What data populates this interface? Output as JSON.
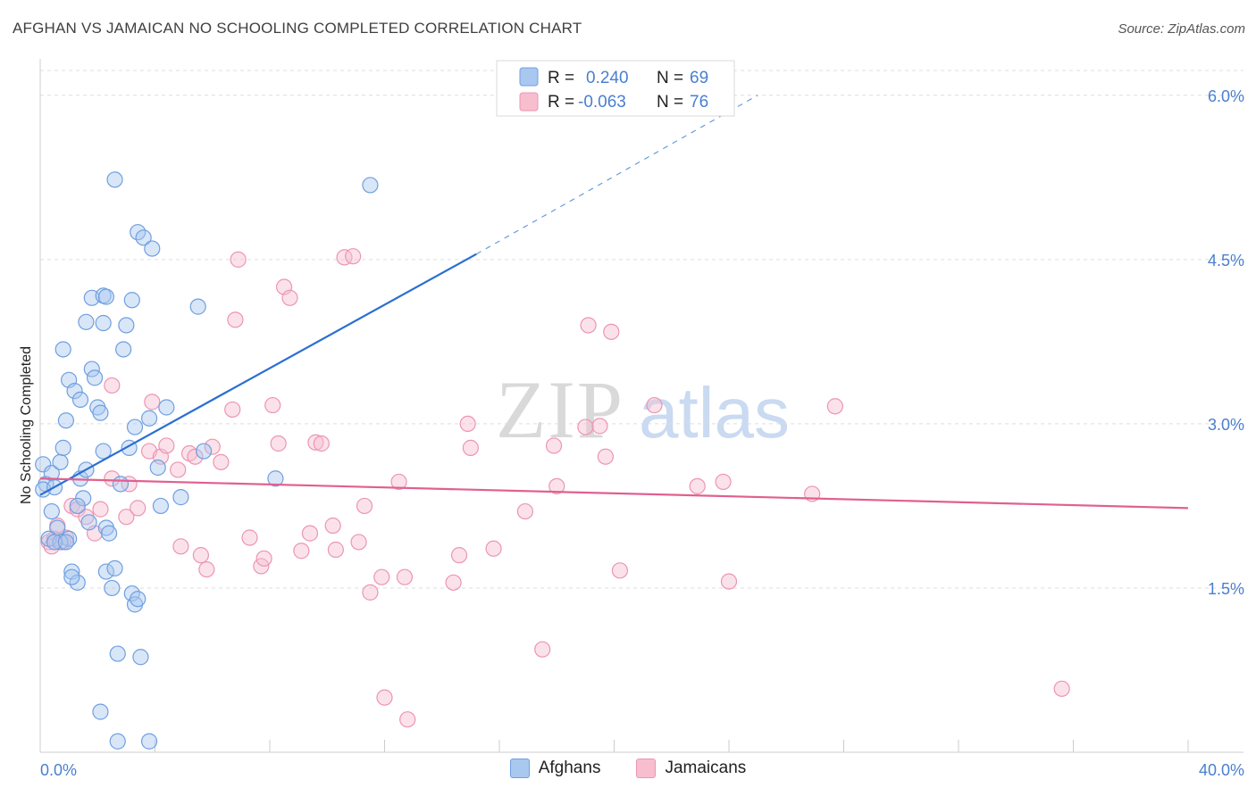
{
  "title": "AFGHAN VS JAMAICAN NO SCHOOLING COMPLETED CORRELATION CHART",
  "source": "Source: ZipAtlas.com",
  "watermark": {
    "zip": "ZIP",
    "atlas": "atlas"
  },
  "legend_top": [
    {
      "r_label": "R =",
      "r_value": "0.240",
      "n_label": "N =",
      "n_value": "69"
    },
    {
      "r_label": "R =",
      "r_value": "-0.063",
      "n_label": "N =",
      "n_value": "76"
    }
  ],
  "legend_bottom": [
    {
      "label": "Afghans"
    },
    {
      "label": "Jamaicans"
    }
  ],
  "colors": {
    "afghan_fill": "#a9c8f0",
    "afghan_stroke": "#6f9fe0",
    "afghan_line": "#2a6fd0",
    "jamaican_fill": "#f7bed0",
    "jamaican_stroke": "#ec95b2",
    "jamaican_line": "#e06090",
    "accent_text": "#4a7fd0"
  },
  "chart_data": {
    "type": "scatter",
    "title": "AFGHAN VS JAMAICAN NO SCHOOLING COMPLETED CORRELATION CHART",
    "xlabel": "",
    "ylabel": "No Schooling Completed",
    "xlim": [
      0,
      40
    ],
    "ylim": [
      0,
      6.3
    ],
    "x_tick_labels": [
      "0.0%",
      "40.0%"
    ],
    "y_ticks": [
      1.5,
      3.0,
      4.5,
      6.0
    ],
    "y_tick_labels": [
      "1.5%",
      "3.0%",
      "4.5%",
      "6.0%"
    ],
    "grid": true,
    "series": [
      {
        "name": "Afghans",
        "r": 0.24,
        "n": 69,
        "trend": {
          "x0": 0,
          "y0": 2.35,
          "x1": 15.2,
          "y1": 4.55,
          "dash_to_x": 25,
          "dash_to_y": 6.0
        },
        "points": [
          [
            0.1,
            2.63
          ],
          [
            0.2,
            2.45
          ],
          [
            0.1,
            2.4
          ],
          [
            0.4,
            2.55
          ],
          [
            0.5,
            2.42
          ],
          [
            0.4,
            2.2
          ],
          [
            0.6,
            2.05
          ],
          [
            0.3,
            1.95
          ],
          [
            0.7,
            2.65
          ],
          [
            0.8,
            2.78
          ],
          [
            0.9,
            3.03
          ],
          [
            1.0,
            3.4
          ],
          [
            1.2,
            3.3
          ],
          [
            1.4,
            3.22
          ],
          [
            0.8,
            3.68
          ],
          [
            1.4,
            2.5
          ],
          [
            1.5,
            2.32
          ],
          [
            1.6,
            2.58
          ],
          [
            1.7,
            2.1
          ],
          [
            1.8,
            3.5
          ],
          [
            1.9,
            3.42
          ],
          [
            2.0,
            3.15
          ],
          [
            2.1,
            3.1
          ],
          [
            2.2,
            2.75
          ],
          [
            2.3,
            2.05
          ],
          [
            2.4,
            2.0
          ],
          [
            2.3,
            1.65
          ],
          [
            2.5,
            1.5
          ],
          [
            2.6,
            1.68
          ],
          [
            2.7,
            0.9
          ],
          [
            1.6,
            3.93
          ],
          [
            1.8,
            4.15
          ],
          [
            2.2,
            4.17
          ],
          [
            2.3,
            4.16
          ],
          [
            2.2,
            3.92
          ],
          [
            2.6,
            5.23
          ],
          [
            2.9,
            3.68
          ],
          [
            3.0,
            3.9
          ],
          [
            3.2,
            4.13
          ],
          [
            3.4,
            4.75
          ],
          [
            3.6,
            4.7
          ],
          [
            3.9,
            4.6
          ],
          [
            3.1,
            2.78
          ],
          [
            3.2,
            1.45
          ],
          [
            3.3,
            1.35
          ],
          [
            3.4,
            1.4
          ],
          [
            3.5,
            0.87
          ],
          [
            3.8,
            0.1
          ],
          [
            2.7,
            0.1
          ],
          [
            2.1,
            0.37
          ],
          [
            1.1,
            1.65
          ],
          [
            1.3,
            1.55
          ],
          [
            1.1,
            1.6
          ],
          [
            1.0,
            1.95
          ],
          [
            0.7,
            1.92
          ],
          [
            1.3,
            2.25
          ],
          [
            3.3,
            2.97
          ],
          [
            3.8,
            3.05
          ],
          [
            4.4,
            3.15
          ],
          [
            4.2,
            2.25
          ],
          [
            4.9,
            2.33
          ],
          [
            5.5,
            4.07
          ],
          [
            5.7,
            2.75
          ],
          [
            8.2,
            2.5
          ],
          [
            11.5,
            5.18
          ],
          [
            4.1,
            2.6
          ],
          [
            2.8,
            2.45
          ],
          [
            0.5,
            1.92
          ],
          [
            0.9,
            1.92
          ]
        ]
      },
      {
        "name": "Jamaicans",
        "r": -0.063,
        "n": 76,
        "trend": {
          "x0": 0,
          "y0": 2.5,
          "x1": 40,
          "y1": 2.23
        },
        "points": [
          [
            0.3,
            1.92
          ],
          [
            0.5,
            1.95
          ],
          [
            0.6,
            2.07
          ],
          [
            0.8,
            1.92
          ],
          [
            0.9,
            1.96
          ],
          [
            1.1,
            2.25
          ],
          [
            1.3,
            2.22
          ],
          [
            1.6,
            2.15
          ],
          [
            1.9,
            2.0
          ],
          [
            2.1,
            2.22
          ],
          [
            2.5,
            2.5
          ],
          [
            2.5,
            3.35
          ],
          [
            3.1,
            2.45
          ],
          [
            3.0,
            2.15
          ],
          [
            3.4,
            2.23
          ],
          [
            3.9,
            3.2
          ],
          [
            3.8,
            2.75
          ],
          [
            4.2,
            2.7
          ],
          [
            4.4,
            2.8
          ],
          [
            4.8,
            2.58
          ],
          [
            4.9,
            1.88
          ],
          [
            5.2,
            2.73
          ],
          [
            5.4,
            2.7
          ],
          [
            5.6,
            1.8
          ],
          [
            5.8,
            1.67
          ],
          [
            6.0,
            2.79
          ],
          [
            6.3,
            2.65
          ],
          [
            6.7,
            3.13
          ],
          [
            6.8,
            3.95
          ],
          [
            6.9,
            4.5
          ],
          [
            7.3,
            1.96
          ],
          [
            7.7,
            1.7
          ],
          [
            7.8,
            1.77
          ],
          [
            8.1,
            3.17
          ],
          [
            8.3,
            2.82
          ],
          [
            8.5,
            4.25
          ],
          [
            8.7,
            4.15
          ],
          [
            9.1,
            1.84
          ],
          [
            9.4,
            2.0
          ],
          [
            9.6,
            2.83
          ],
          [
            9.8,
            2.82
          ],
          [
            10.2,
            2.07
          ],
          [
            10.3,
            1.85
          ],
          [
            10.6,
            4.52
          ],
          [
            10.9,
            4.53
          ],
          [
            11.1,
            1.92
          ],
          [
            11.3,
            2.25
          ],
          [
            11.5,
            1.46
          ],
          [
            11.9,
            1.6
          ],
          [
            12.0,
            0.5
          ],
          [
            12.7,
            1.6
          ],
          [
            12.8,
            0.3
          ],
          [
            12.5,
            2.47
          ],
          [
            14.4,
            1.55
          ],
          [
            14.6,
            1.8
          ],
          [
            14.9,
            3.0
          ],
          [
            15.0,
            2.78
          ],
          [
            15.8,
            1.86
          ],
          [
            16.9,
            2.2
          ],
          [
            17.5,
            0.94
          ],
          [
            17.9,
            2.8
          ],
          [
            18.0,
            2.43
          ],
          [
            19.0,
            2.97
          ],
          [
            19.1,
            3.9
          ],
          [
            19.5,
            2.98
          ],
          [
            19.7,
            2.7
          ],
          [
            19.9,
            3.84
          ],
          [
            20.2,
            1.66
          ],
          [
            21.4,
            3.17
          ],
          [
            22.9,
            2.43
          ],
          [
            23.8,
            2.47
          ],
          [
            24.0,
            1.56
          ],
          [
            26.9,
            2.36
          ],
          [
            27.7,
            3.16
          ],
          [
            35.6,
            0.58
          ],
          [
            0.4,
            1.88
          ]
        ]
      }
    ]
  }
}
